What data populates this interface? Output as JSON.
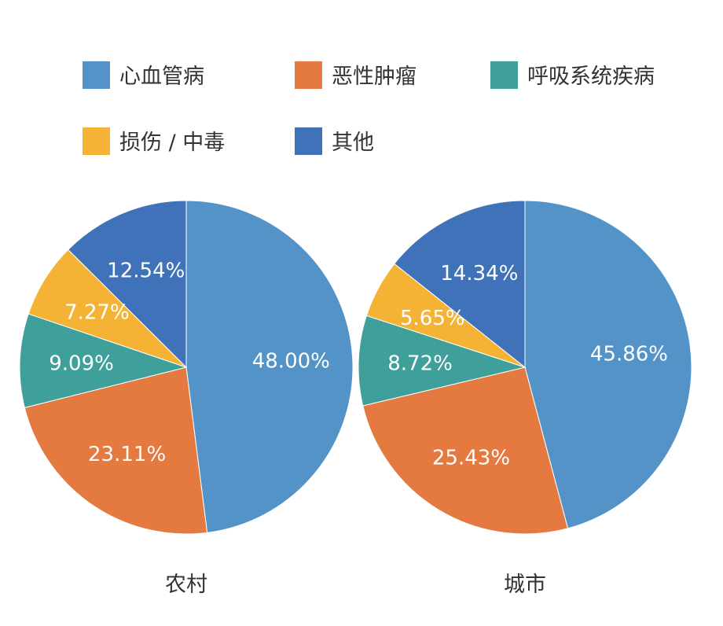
{
  "chart_data": [
    {
      "type": "pie",
      "title": "农村",
      "categories": [
        "心血管病",
        "恶性肿瘤",
        "呼吸系统疾病",
        "损伤 / 中毒",
        "其他"
      ],
      "values": [
        48.0,
        23.11,
        9.09,
        7.27,
        12.54
      ],
      "labels": [
        "48.00%",
        "23.11%",
        "9.09%",
        "7.27%",
        "12.54%"
      ],
      "start": "12 o'clock, clockwise"
    },
    {
      "type": "pie",
      "title": "城市",
      "categories": [
        "心血管病",
        "恶性肿瘤",
        "呼吸系统疾病",
        "损伤 / 中毒",
        "其他"
      ],
      "values": [
        45.86,
        25.43,
        8.72,
        5.65,
        14.34
      ],
      "labels": [
        "45.86%",
        "25.43%",
        "8.72%",
        "5.65%",
        "14.34%"
      ],
      "start": "12 o'clock, clockwise"
    }
  ],
  "legend": {
    "placement": "top",
    "items": [
      {
        "label": "心血管病",
        "color": "#5393c8"
      },
      {
        "label": "恶性肿瘤",
        "color": "#e57a40"
      },
      {
        "label": "呼吸系统疾病",
        "color": "#3fa09b"
      },
      {
        "label": "损伤 / 中毒",
        "color": "#f5b335"
      },
      {
        "label": "其他",
        "color": "#3f72b8"
      }
    ]
  }
}
